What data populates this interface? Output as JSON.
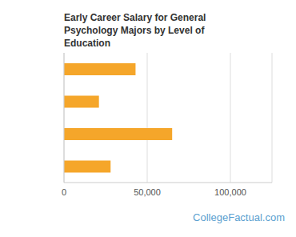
{
  "chart_data": {
    "type": "bar",
    "title": "Early Career Salary for General Psychology Majors by Level of Education",
    "categories": [
      null,
      null,
      null,
      null
    ],
    "values": [
      43000,
      21000,
      65000,
      28000
    ],
    "color": "#f5a62a",
    "orientation": "horizontal",
    "xlim": [
      0,
      125000
    ],
    "xticks": [
      0,
      {
        "value": 50000,
        "label": "50,000"
      },
      {
        "value": 100000,
        "label": "100,000"
      }
    ],
    "grid": true,
    "data_labels": false,
    "source": "CollegeFactual.com"
  }
}
